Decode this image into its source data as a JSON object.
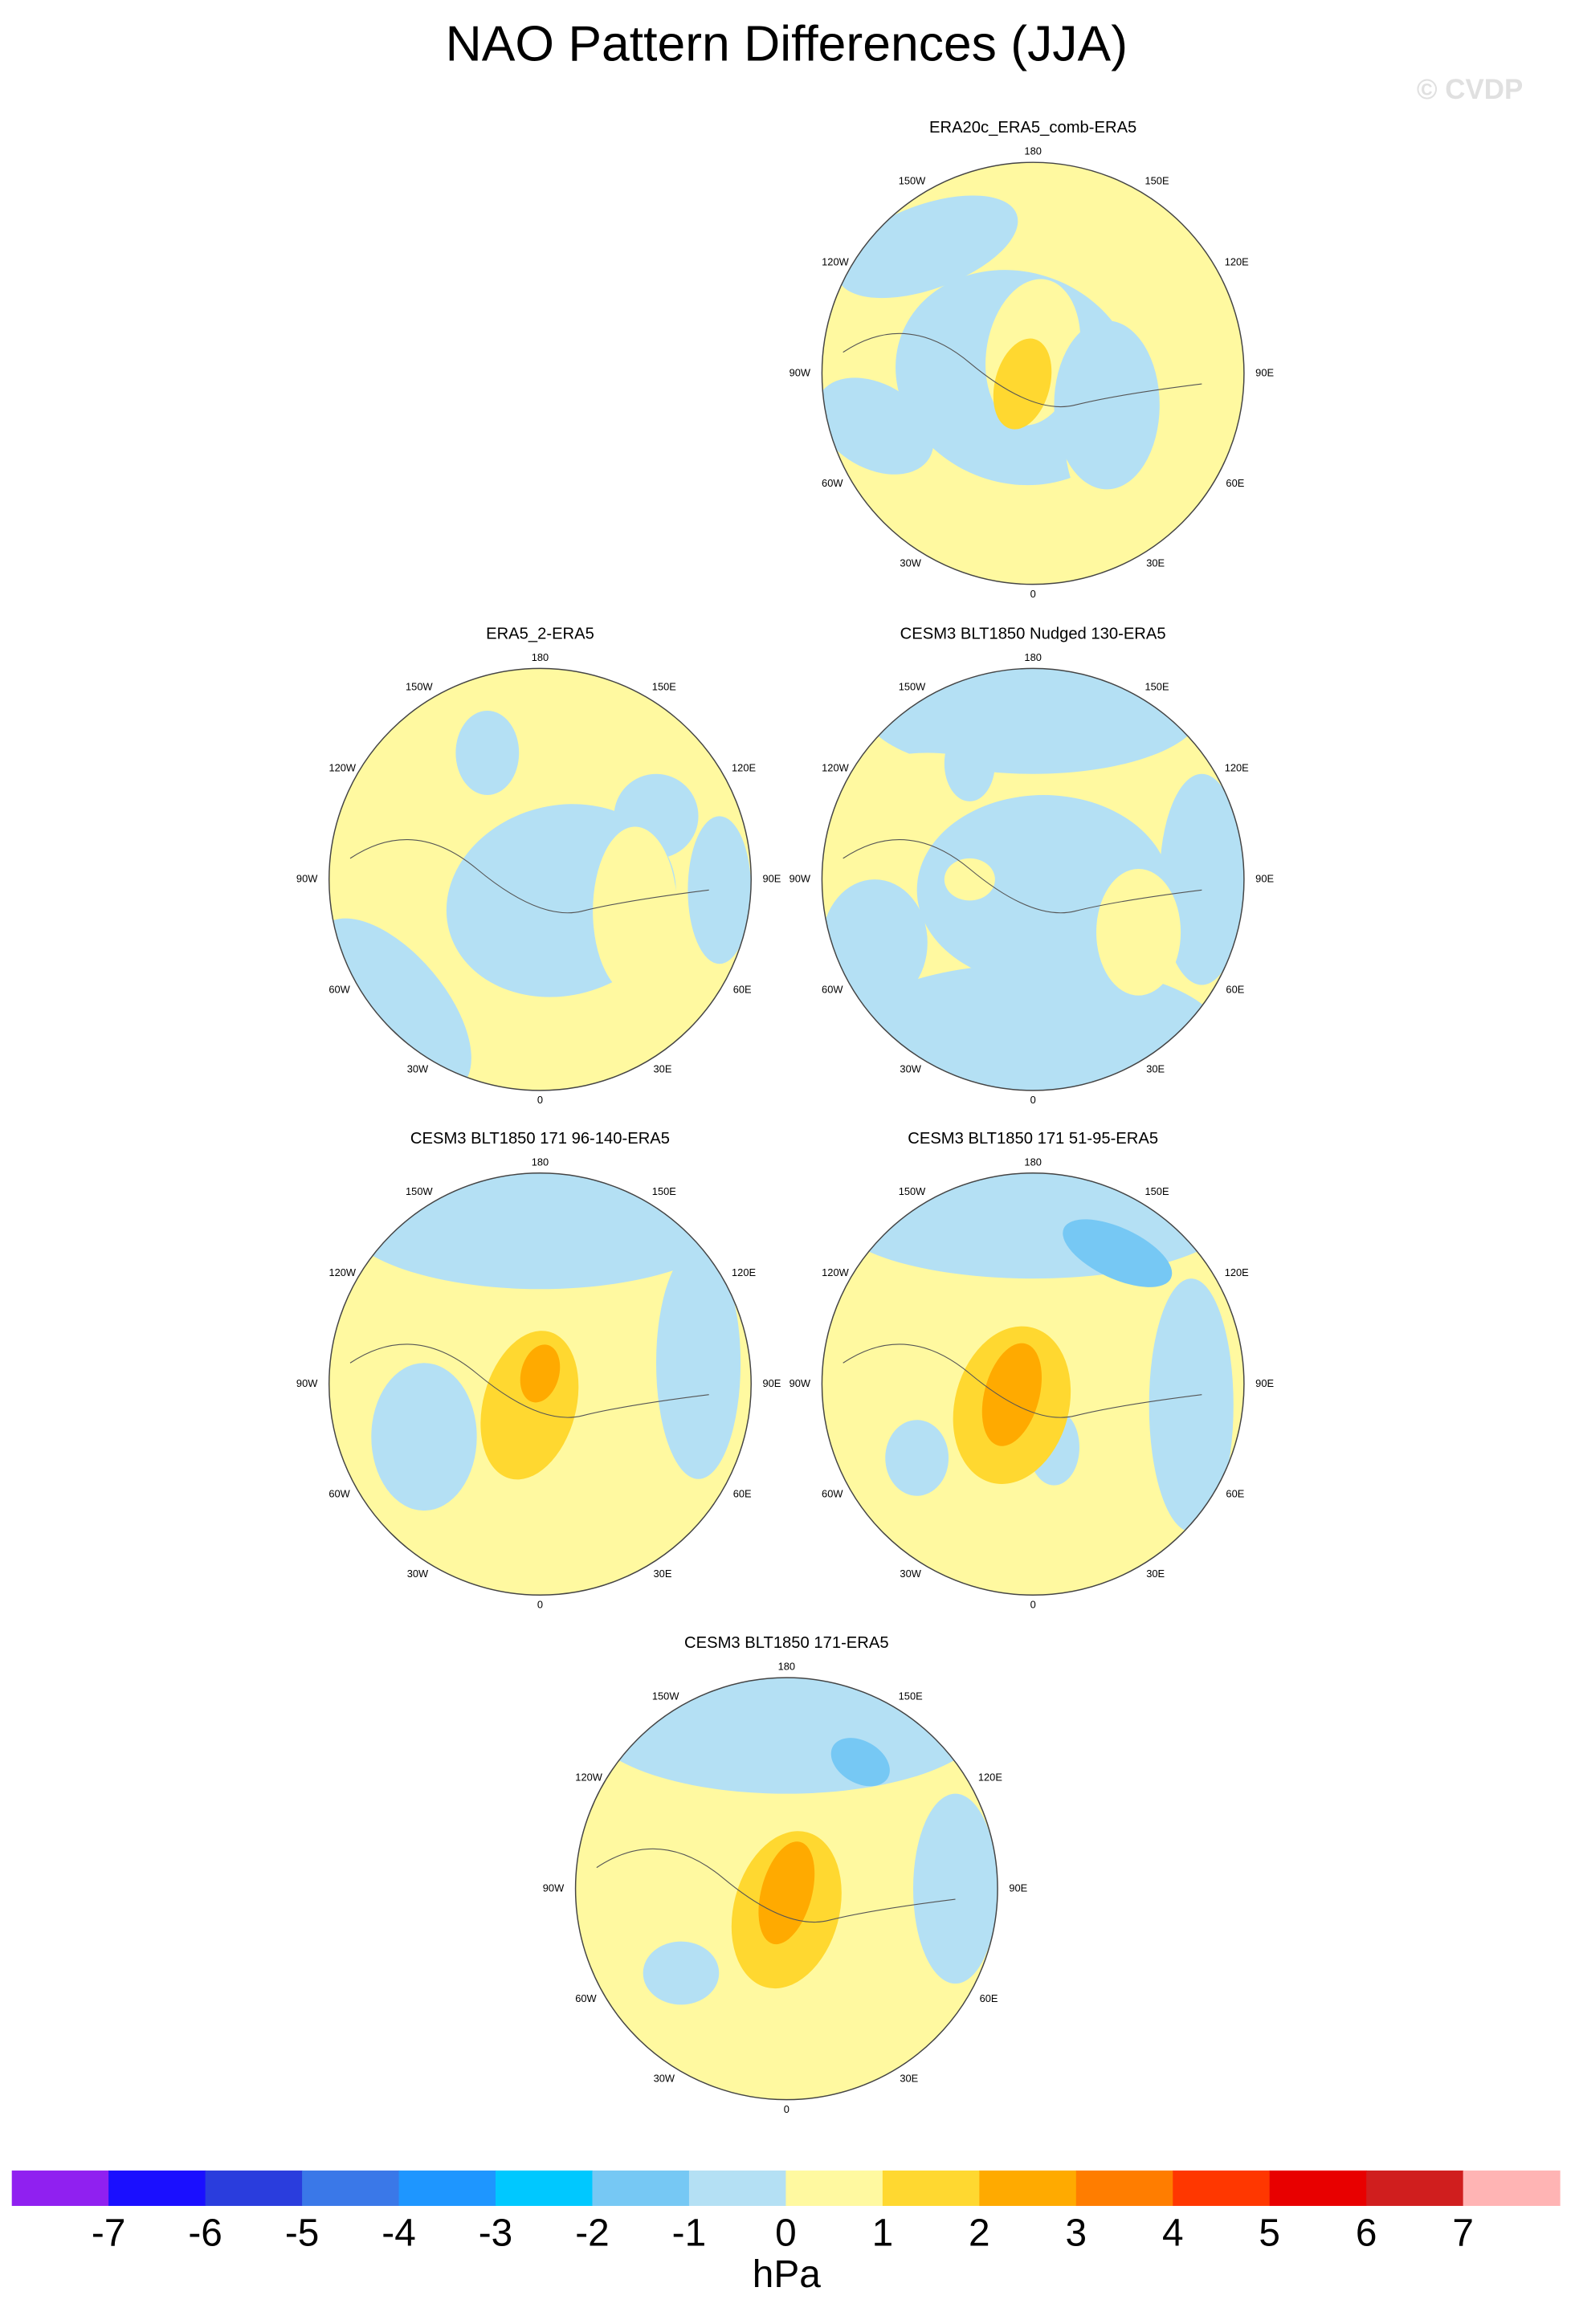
{
  "title": "NAO Pattern Differences (JJA)",
  "watermark": "© CVDP",
  "panels": [
    {
      "title": "ERA20c_ERA5_comb-ERA5"
    },
    {
      "title": "ERA5_2-ERA5"
    },
    {
      "title": "CESM3 BLT1850 Nudged 130-ERA5"
    },
    {
      "title": "CESM3 BLT1850 171 96-140-ERA5"
    },
    {
      "title": "CESM3 BLT1850 171 51-95-ERA5"
    },
    {
      "title": "CESM3 BLT1850 171-ERA5"
    }
  ],
  "lon_labels": [
    "180",
    "150E",
    "120E",
    "90E",
    "60E",
    "30E",
    "0",
    "30W",
    "60W",
    "90W",
    "120W",
    "150W"
  ],
  "colorbar": {
    "levels": [
      -7,
      -6,
      -5,
      -4,
      -3,
      -2,
      -1,
      0,
      1,
      2,
      3,
      4,
      5,
      6,
      7
    ],
    "colors": [
      "#9020f0",
      "#1a0fff",
      "#2a3ddd",
      "#3a78e8",
      "#1e96ff",
      "#00c8ff",
      "#76c8f4",
      "#b4e0f4",
      "#fff9a0",
      "#ffd830",
      "#ffaa00",
      "#ff7d00",
      "#ff3700",
      "#e80000",
      "#d01e1e",
      "#ffb4b4"
    ],
    "unit": "hPa"
  }
}
